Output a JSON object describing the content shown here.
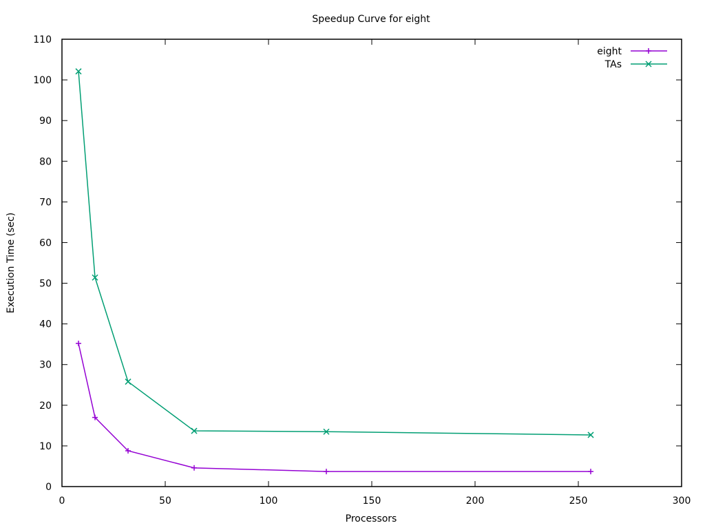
{
  "chart_data": {
    "type": "line",
    "title": "Speedup Curve for eight",
    "xlabel": "Processors",
    "ylabel": "Execution Time (sec)",
    "xlim": [
      0,
      300
    ],
    "ylim": [
      0,
      110
    ],
    "x_ticks": [
      0,
      50,
      100,
      150,
      200,
      250,
      300
    ],
    "y_ticks": [
      0,
      10,
      20,
      30,
      40,
      50,
      60,
      70,
      80,
      90,
      100,
      110
    ],
    "grid": false,
    "legend_position": "top-right",
    "series": [
      {
        "name": "eight",
        "color": "#9400d3",
        "marker": "plus",
        "x": [
          8,
          16,
          32,
          64,
          128,
          256
        ],
        "y": [
          35.2,
          17.0,
          8.8,
          4.6,
          3.7,
          3.7
        ]
      },
      {
        "name": "TAs",
        "color": "#009e73",
        "marker": "cross",
        "x": [
          8,
          16,
          32,
          64,
          128,
          256
        ],
        "y": [
          102.1,
          51.4,
          25.8,
          13.7,
          13.5,
          12.7
        ]
      }
    ]
  }
}
